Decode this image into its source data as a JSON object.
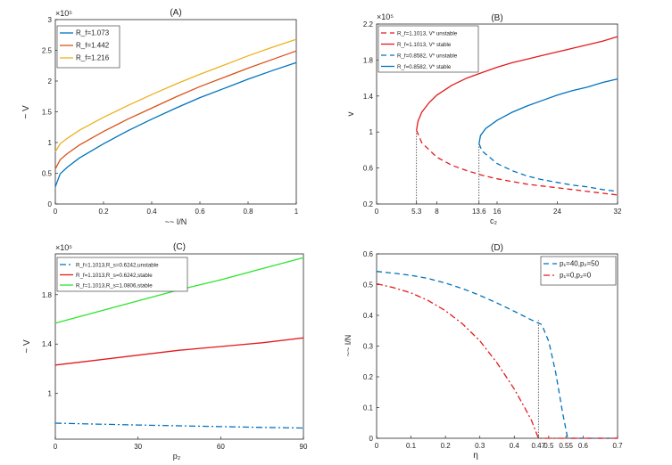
{
  "chart_data": [
    {
      "type": "line",
      "title": "(A)",
      "xlabel": "~~ I/N",
      "ylabel": "~ V",
      "exponent": "×10⁵",
      "xlim": [
        0,
        1
      ],
      "ylim": [
        0,
        3
      ],
      "xticks": [
        0,
        0.2,
        0.4,
        0.6,
        0.8,
        1
      ],
      "xtick_labels": [
        "0",
        "0.2",
        "0.4",
        "0.6",
        "0.8",
        "1"
      ],
      "yticks": [
        0,
        0.5,
        1,
        1.5,
        2,
        2.5,
        3
      ],
      "ytick_labels": [
        "0",
        "0.5",
        "1",
        "1.5",
        "2",
        "2.5",
        "3"
      ],
      "legend": "top-left",
      "series": [
        {
          "name": "R_f=1.073",
          "color": "#0072BD",
          "dash": "",
          "x": [
            0,
            0.02,
            0.05,
            0.1,
            0.2,
            0.3,
            0.4,
            0.5,
            0.6,
            0.7,
            0.8,
            0.9,
            1.0
          ],
          "y": [
            0.28,
            0.49,
            0.6,
            0.75,
            0.98,
            1.19,
            1.38,
            1.56,
            1.73,
            1.88,
            2.03,
            2.17,
            2.3
          ]
        },
        {
          "name": "R_f=1.442",
          "color": "#D95319",
          "dash": "",
          "x": [
            0,
            0.02,
            0.05,
            0.1,
            0.2,
            0.3,
            0.4,
            0.5,
            0.6,
            0.7,
            0.8,
            0.9,
            1.0
          ],
          "y": [
            0.57,
            0.72,
            0.82,
            0.96,
            1.18,
            1.38,
            1.56,
            1.74,
            1.91,
            2.06,
            2.21,
            2.35,
            2.49
          ]
        },
        {
          "name": "R_f=1.216",
          "color": "#EDB120",
          "dash": "",
          "x": [
            0,
            0.02,
            0.05,
            0.1,
            0.2,
            0.3,
            0.4,
            0.5,
            0.6,
            0.7,
            0.8,
            0.9,
            1.0
          ],
          "y": [
            0.85,
            0.98,
            1.07,
            1.2,
            1.41,
            1.6,
            1.78,
            1.95,
            2.11,
            2.26,
            2.41,
            2.55,
            2.68
          ]
        }
      ],
      "annotations": []
    },
    {
      "type": "line",
      "title": "(B)",
      "xlabel": "c₂",
      "ylabel": "v",
      "exponent": "×10⁵",
      "xlim": [
        0,
        32
      ],
      "ylim": [
        0.2,
        2.2
      ],
      "xticks": [
        0,
        5.3,
        8,
        13.6,
        16,
        24,
        32
      ],
      "xtick_labels": [
        "0",
        "5.3",
        "8",
        "13.6",
        "16",
        "24",
        "32"
      ],
      "yticks": [
        0.2,
        0.6,
        1,
        1.4,
        1.8,
        2.2
      ],
      "ytick_labels": [
        "0.2",
        "0.6",
        "1",
        "1.4",
        "1.8",
        "2.2"
      ],
      "legend": "top-left",
      "series": [
        {
          "name": "R_f=1.1013, V* unstable",
          "color": "#E41A1C",
          "dash": "6,4",
          "x": [
            5.3,
            6,
            8,
            10,
            12,
            14,
            16,
            18,
            20,
            22,
            24,
            26,
            28,
            30,
            32
          ],
          "y": [
            1.02,
            0.88,
            0.72,
            0.63,
            0.57,
            0.52,
            0.48,
            0.45,
            0.42,
            0.4,
            0.38,
            0.36,
            0.34,
            0.32,
            0.3
          ]
        },
        {
          "name": "R_f=1.1013, V* stable",
          "color": "#E41A1C",
          "dash": "",
          "x": [
            5.3,
            5.5,
            6,
            7,
            8,
            10,
            12,
            14,
            16,
            18,
            20,
            22,
            24,
            26,
            28,
            30,
            32
          ],
          "y": [
            1.02,
            1.12,
            1.22,
            1.33,
            1.41,
            1.52,
            1.6,
            1.66,
            1.72,
            1.77,
            1.81,
            1.85,
            1.89,
            1.93,
            1.97,
            2.01,
            2.06
          ]
        },
        {
          "name": "R_f=0.8582, V* unstable",
          "color": "#0072BD",
          "dash": "6,4",
          "x": [
            13.6,
            14,
            16,
            18,
            20,
            22,
            24,
            26,
            28,
            30,
            32
          ],
          "y": [
            0.87,
            0.79,
            0.65,
            0.57,
            0.51,
            0.47,
            0.44,
            0.41,
            0.39,
            0.36,
            0.34
          ]
        },
        {
          "name": "R_f=0.8582, V* stable",
          "color": "#0072BD",
          "dash": "",
          "x": [
            13.6,
            13.8,
            14.5,
            16,
            18,
            20,
            22,
            24,
            26,
            28,
            30,
            32
          ],
          "y": [
            0.87,
            0.96,
            1.04,
            1.13,
            1.22,
            1.29,
            1.35,
            1.41,
            1.46,
            1.5,
            1.55,
            1.59
          ]
        }
      ],
      "guides": [
        {
          "x": 5.3,
          "y_top": 1.02
        },
        {
          "x": 13.6,
          "y_top": 0.87
        }
      ],
      "annotations": []
    },
    {
      "type": "line",
      "title": "(C)",
      "xlabel": "p₂",
      "ylabel": "~ V",
      "exponent": "×10⁵",
      "xlim": [
        0,
        90
      ],
      "ylim": [
        0.63,
        2.13
      ],
      "xticks": [
        0,
        30,
        60,
        90
      ],
      "xtick_labels": [
        "0",
        "30",
        "60",
        "90"
      ],
      "yticks": [
        1,
        1.4,
        1.8
      ],
      "ytick_labels": [
        "1",
        "1.4",
        "1.8"
      ],
      "legend": "top-left",
      "series": [
        {
          "name": "R_f=1.1013,R_s=0.6242,unstable",
          "color": "#0072BD",
          "dash": "7,3,2,3",
          "x": [
            0,
            15,
            30,
            45,
            60,
            75,
            90
          ],
          "y": [
            0.76,
            0.752,
            0.745,
            0.738,
            0.732,
            0.725,
            0.72
          ]
        },
        {
          "name": "R_f=1.1013,R_s=0.6242,stable",
          "color": "#E41A1C",
          "dash": "",
          "x": [
            0,
            15,
            30,
            45,
            60,
            75,
            90
          ],
          "y": [
            1.23,
            1.27,
            1.31,
            1.35,
            1.38,
            1.41,
            1.45
          ]
        },
        {
          "name": "R_f=1.1013,R_s=1.0806,stable",
          "color": "#2EE52E",
          "dash": "",
          "x": [
            0,
            15,
            30,
            45,
            60,
            75,
            90
          ],
          "y": [
            1.57,
            1.66,
            1.75,
            1.84,
            1.92,
            2.01,
            2.1
          ]
        }
      ],
      "annotations": []
    },
    {
      "type": "line",
      "title": "(D)",
      "xlabel": "η",
      "ylabel": "~~ I/N",
      "exponent": "",
      "xlim": [
        0,
        0.7
      ],
      "ylim": [
        0,
        0.6
      ],
      "xticks": [
        0,
        0.1,
        0.2,
        0.3,
        0.4,
        0.47,
        0.5,
        0.55,
        0.6,
        0.7
      ],
      "xtick_labels": [
        "0",
        "0.1",
        "0.2",
        "0.3",
        "0.4",
        "0.47",
        "0.5",
        "0.55",
        "0.6",
        "0.7"
      ],
      "yticks": [
        0,
        0.1,
        0.2,
        0.3,
        0.4,
        0.5,
        0.6
      ],
      "ytick_labels": [
        "0",
        "0.1",
        "0.2",
        "0.3",
        "0.4",
        "0.5",
        "0.6"
      ],
      "legend": "top-right",
      "series": [
        {
          "name": "p₁=40,p₂=50",
          "color": "#0072BD",
          "dash": "6,4",
          "x": [
            0,
            0.05,
            0.1,
            0.15,
            0.2,
            0.25,
            0.3,
            0.35,
            0.4,
            0.45,
            0.48,
            0.5,
            0.52,
            0.54,
            0.555,
            0.6,
            0.7
          ],
          "y": [
            0.543,
            0.537,
            0.53,
            0.52,
            0.505,
            0.487,
            0.465,
            0.44,
            0.413,
            0.385,
            0.37,
            0.315,
            0.215,
            0.085,
            0,
            0,
            0
          ]
        },
        {
          "name": "p₁=0,p₂=0",
          "color": "#E41A1C",
          "dash": "7,3,2,3",
          "x": [
            0,
            0.05,
            0.1,
            0.15,
            0.2,
            0.25,
            0.3,
            0.35,
            0.4,
            0.43,
            0.45,
            0.47,
            0.5,
            0.6,
            0.7
          ],
          "y": [
            0.503,
            0.49,
            0.473,
            0.448,
            0.415,
            0.372,
            0.317,
            0.245,
            0.16,
            0.1,
            0.058,
            0,
            0,
            0,
            0
          ]
        }
      ],
      "guides": [
        {
          "x": 0.47,
          "y_top": 0.385
        }
      ],
      "annotations": []
    }
  ]
}
